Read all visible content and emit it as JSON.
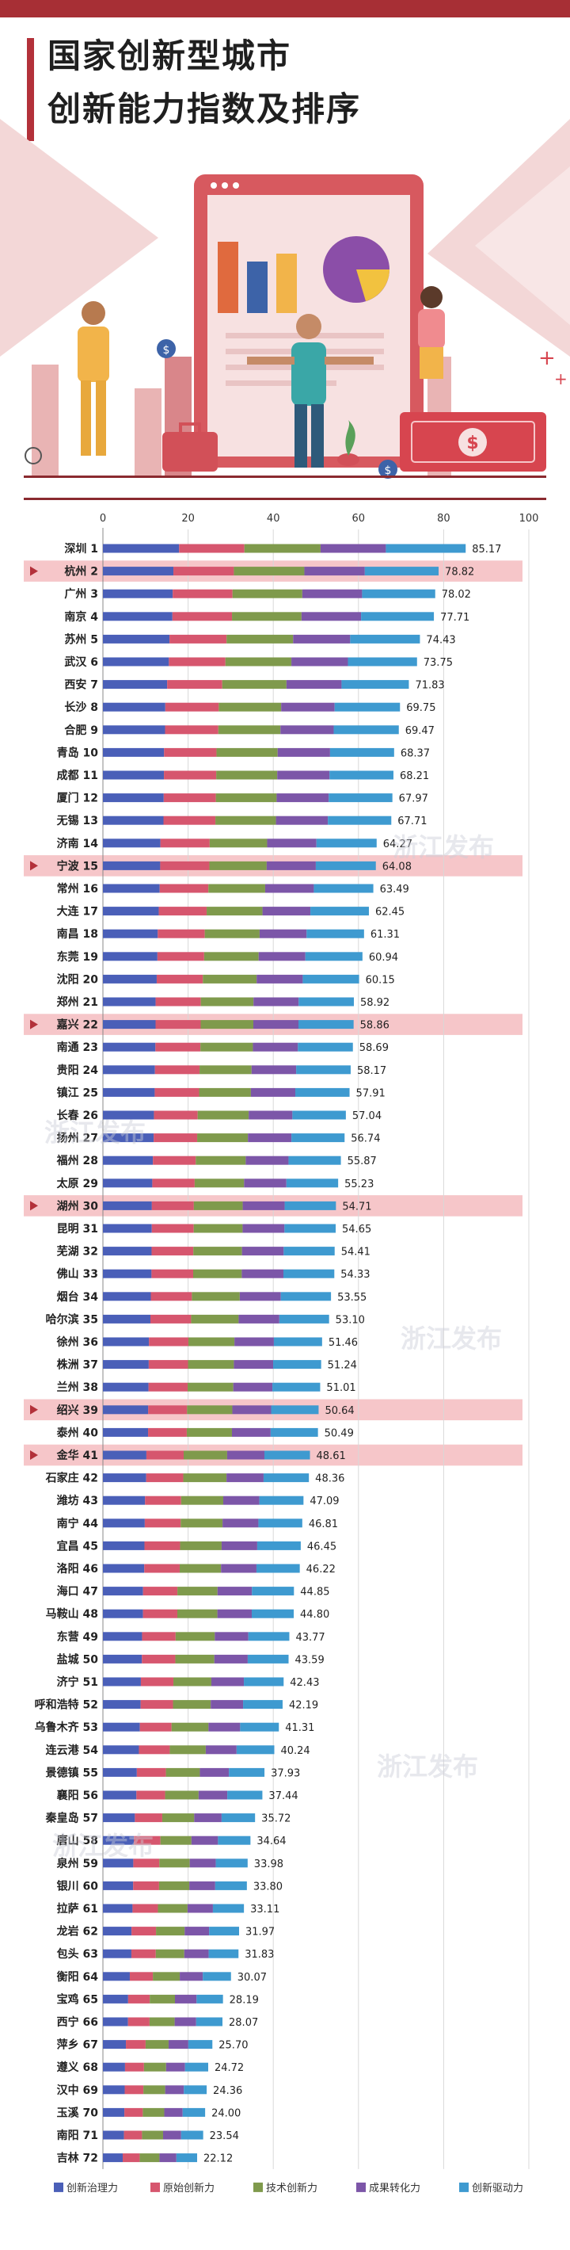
{
  "header": {
    "title_line1": "国家创新型城市",
    "title_line2": "创新能力指数及排序"
  },
  "watermark": "浙江发布",
  "colors": {
    "accent": "#a72f35",
    "highlight_row": "#f6c6c9",
    "components": [
      "#4a5fb8",
      "#d6566e",
      "#7f9a4c",
      "#7c56a8",
      "#3e9ad0"
    ]
  },
  "chart_data": {
    "type": "bar",
    "orientation": "horizontal",
    "stacked": true,
    "xlim": [
      0,
      100
    ],
    "x_ticks": [
      0,
      20,
      40,
      60,
      80,
      100
    ],
    "grid": true,
    "legend_position": "bottom",
    "components": [
      "创新治理力",
      "原始创新力",
      "技术创新力",
      "成果转化力",
      "创新驱动力"
    ],
    "highlighted": [
      "杭州",
      "宁波",
      "嘉兴",
      "湖州",
      "绍兴",
      "金华"
    ],
    "cities": [
      {
        "name": "深圳",
        "rank": 1,
        "value": 85.17
      },
      {
        "name": "杭州",
        "rank": 2,
        "value": 78.82
      },
      {
        "name": "广州",
        "rank": 3,
        "value": 78.02
      },
      {
        "name": "南京",
        "rank": 4,
        "value": 77.71
      },
      {
        "name": "苏州",
        "rank": 5,
        "value": 74.43
      },
      {
        "name": "武汉",
        "rank": 6,
        "value": 73.75
      },
      {
        "name": "西安",
        "rank": 7,
        "value": 71.83
      },
      {
        "name": "长沙",
        "rank": 8,
        "value": 69.75
      },
      {
        "name": "合肥",
        "rank": 9,
        "value": 69.47
      },
      {
        "name": "青岛",
        "rank": 10,
        "value": 68.37
      },
      {
        "name": "成都",
        "rank": 11,
        "value": 68.21
      },
      {
        "name": "厦门",
        "rank": 12,
        "value": 67.97
      },
      {
        "name": "无锡",
        "rank": 13,
        "value": 67.71
      },
      {
        "name": "济南",
        "rank": 14,
        "value": 64.27
      },
      {
        "name": "宁波",
        "rank": 15,
        "value": 64.08
      },
      {
        "name": "常州",
        "rank": 16,
        "value": 63.49
      },
      {
        "name": "大连",
        "rank": 17,
        "value": 62.45
      },
      {
        "name": "南昌",
        "rank": 18,
        "value": 61.31
      },
      {
        "name": "东莞",
        "rank": 19,
        "value": 60.94
      },
      {
        "name": "沈阳",
        "rank": 20,
        "value": 60.15
      },
      {
        "name": "郑州",
        "rank": 21,
        "value": 58.92
      },
      {
        "name": "嘉兴",
        "rank": 22,
        "value": 58.86
      },
      {
        "name": "南通",
        "rank": 23,
        "value": 58.69
      },
      {
        "name": "贵阳",
        "rank": 24,
        "value": 58.17
      },
      {
        "name": "镇江",
        "rank": 25,
        "value": 57.91
      },
      {
        "name": "长春",
        "rank": 26,
        "value": 57.04
      },
      {
        "name": "扬州",
        "rank": 27,
        "value": 56.74
      },
      {
        "name": "福州",
        "rank": 28,
        "value": 55.87
      },
      {
        "name": "太原",
        "rank": 29,
        "value": 55.23
      },
      {
        "name": "湖州",
        "rank": 30,
        "value": 54.71
      },
      {
        "name": "昆明",
        "rank": 31,
        "value": 54.65
      },
      {
        "name": "芜湖",
        "rank": 32,
        "value": 54.41
      },
      {
        "name": "佛山",
        "rank": 33,
        "value": 54.33
      },
      {
        "name": "烟台",
        "rank": 34,
        "value": 53.55
      },
      {
        "name": "哈尔滨",
        "rank": 35,
        "value": 53.1
      },
      {
        "name": "徐州",
        "rank": 36,
        "value": 51.46
      },
      {
        "name": "株洲",
        "rank": 37,
        "value": 51.24
      },
      {
        "name": "兰州",
        "rank": 38,
        "value": 51.01
      },
      {
        "name": "绍兴",
        "rank": 39,
        "value": 50.64
      },
      {
        "name": "泰州",
        "rank": 40,
        "value": 50.49
      },
      {
        "name": "金华",
        "rank": 41,
        "value": 48.61
      },
      {
        "name": "石家庄",
        "rank": 42,
        "value": 48.36
      },
      {
        "name": "潍坊",
        "rank": 43,
        "value": 47.09
      },
      {
        "name": "南宁",
        "rank": 44,
        "value": 46.81
      },
      {
        "name": "宜昌",
        "rank": 45,
        "value": 46.45
      },
      {
        "name": "洛阳",
        "rank": 46,
        "value": 46.22
      },
      {
        "name": "海口",
        "rank": 47,
        "value": 44.85
      },
      {
        "name": "马鞍山",
        "rank": 48,
        "value": 44.8
      },
      {
        "name": "东营",
        "rank": 49,
        "value": 43.77
      },
      {
        "name": "盐城",
        "rank": 50,
        "value": 43.59
      },
      {
        "name": "济宁",
        "rank": 51,
        "value": 42.43
      },
      {
        "name": "呼和浩特",
        "rank": 52,
        "value": 42.19
      },
      {
        "name": "乌鲁木齐",
        "rank": 53,
        "value": 41.31
      },
      {
        "name": "连云港",
        "rank": 54,
        "value": 40.24
      },
      {
        "name": "景德镇",
        "rank": 55,
        "value": 37.93
      },
      {
        "name": "襄阳",
        "rank": 56,
        "value": 37.44
      },
      {
        "name": "秦皇岛",
        "rank": 57,
        "value": 35.72
      },
      {
        "name": "唐山",
        "rank": 58,
        "value": 34.64
      },
      {
        "name": "泉州",
        "rank": 59,
        "value": 33.98
      },
      {
        "name": "银川",
        "rank": 60,
        "value": 33.8
      },
      {
        "name": "拉萨",
        "rank": 61,
        "value": 33.11
      },
      {
        "name": "龙岩",
        "rank": 62,
        "value": 31.97
      },
      {
        "name": "包头",
        "rank": 63,
        "value": 31.83
      },
      {
        "name": "衡阳",
        "rank": 64,
        "value": 30.07
      },
      {
        "name": "宝鸡",
        "rank": 65,
        "value": 28.19
      },
      {
        "name": "西宁",
        "rank": 66,
        "value": 28.07
      },
      {
        "name": "萍乡",
        "rank": 67,
        "value": 25.7
      },
      {
        "name": "遵义",
        "rank": 68,
        "value": 24.72
      },
      {
        "name": "汉中",
        "rank": 69,
        "value": 24.36
      },
      {
        "name": "玉溪",
        "rank": 70,
        "value": 24.0
      },
      {
        "name": "南阳",
        "rank": 71,
        "value": 23.54
      },
      {
        "name": "吉林",
        "rank": 72,
        "value": 22.12
      }
    ]
  }
}
